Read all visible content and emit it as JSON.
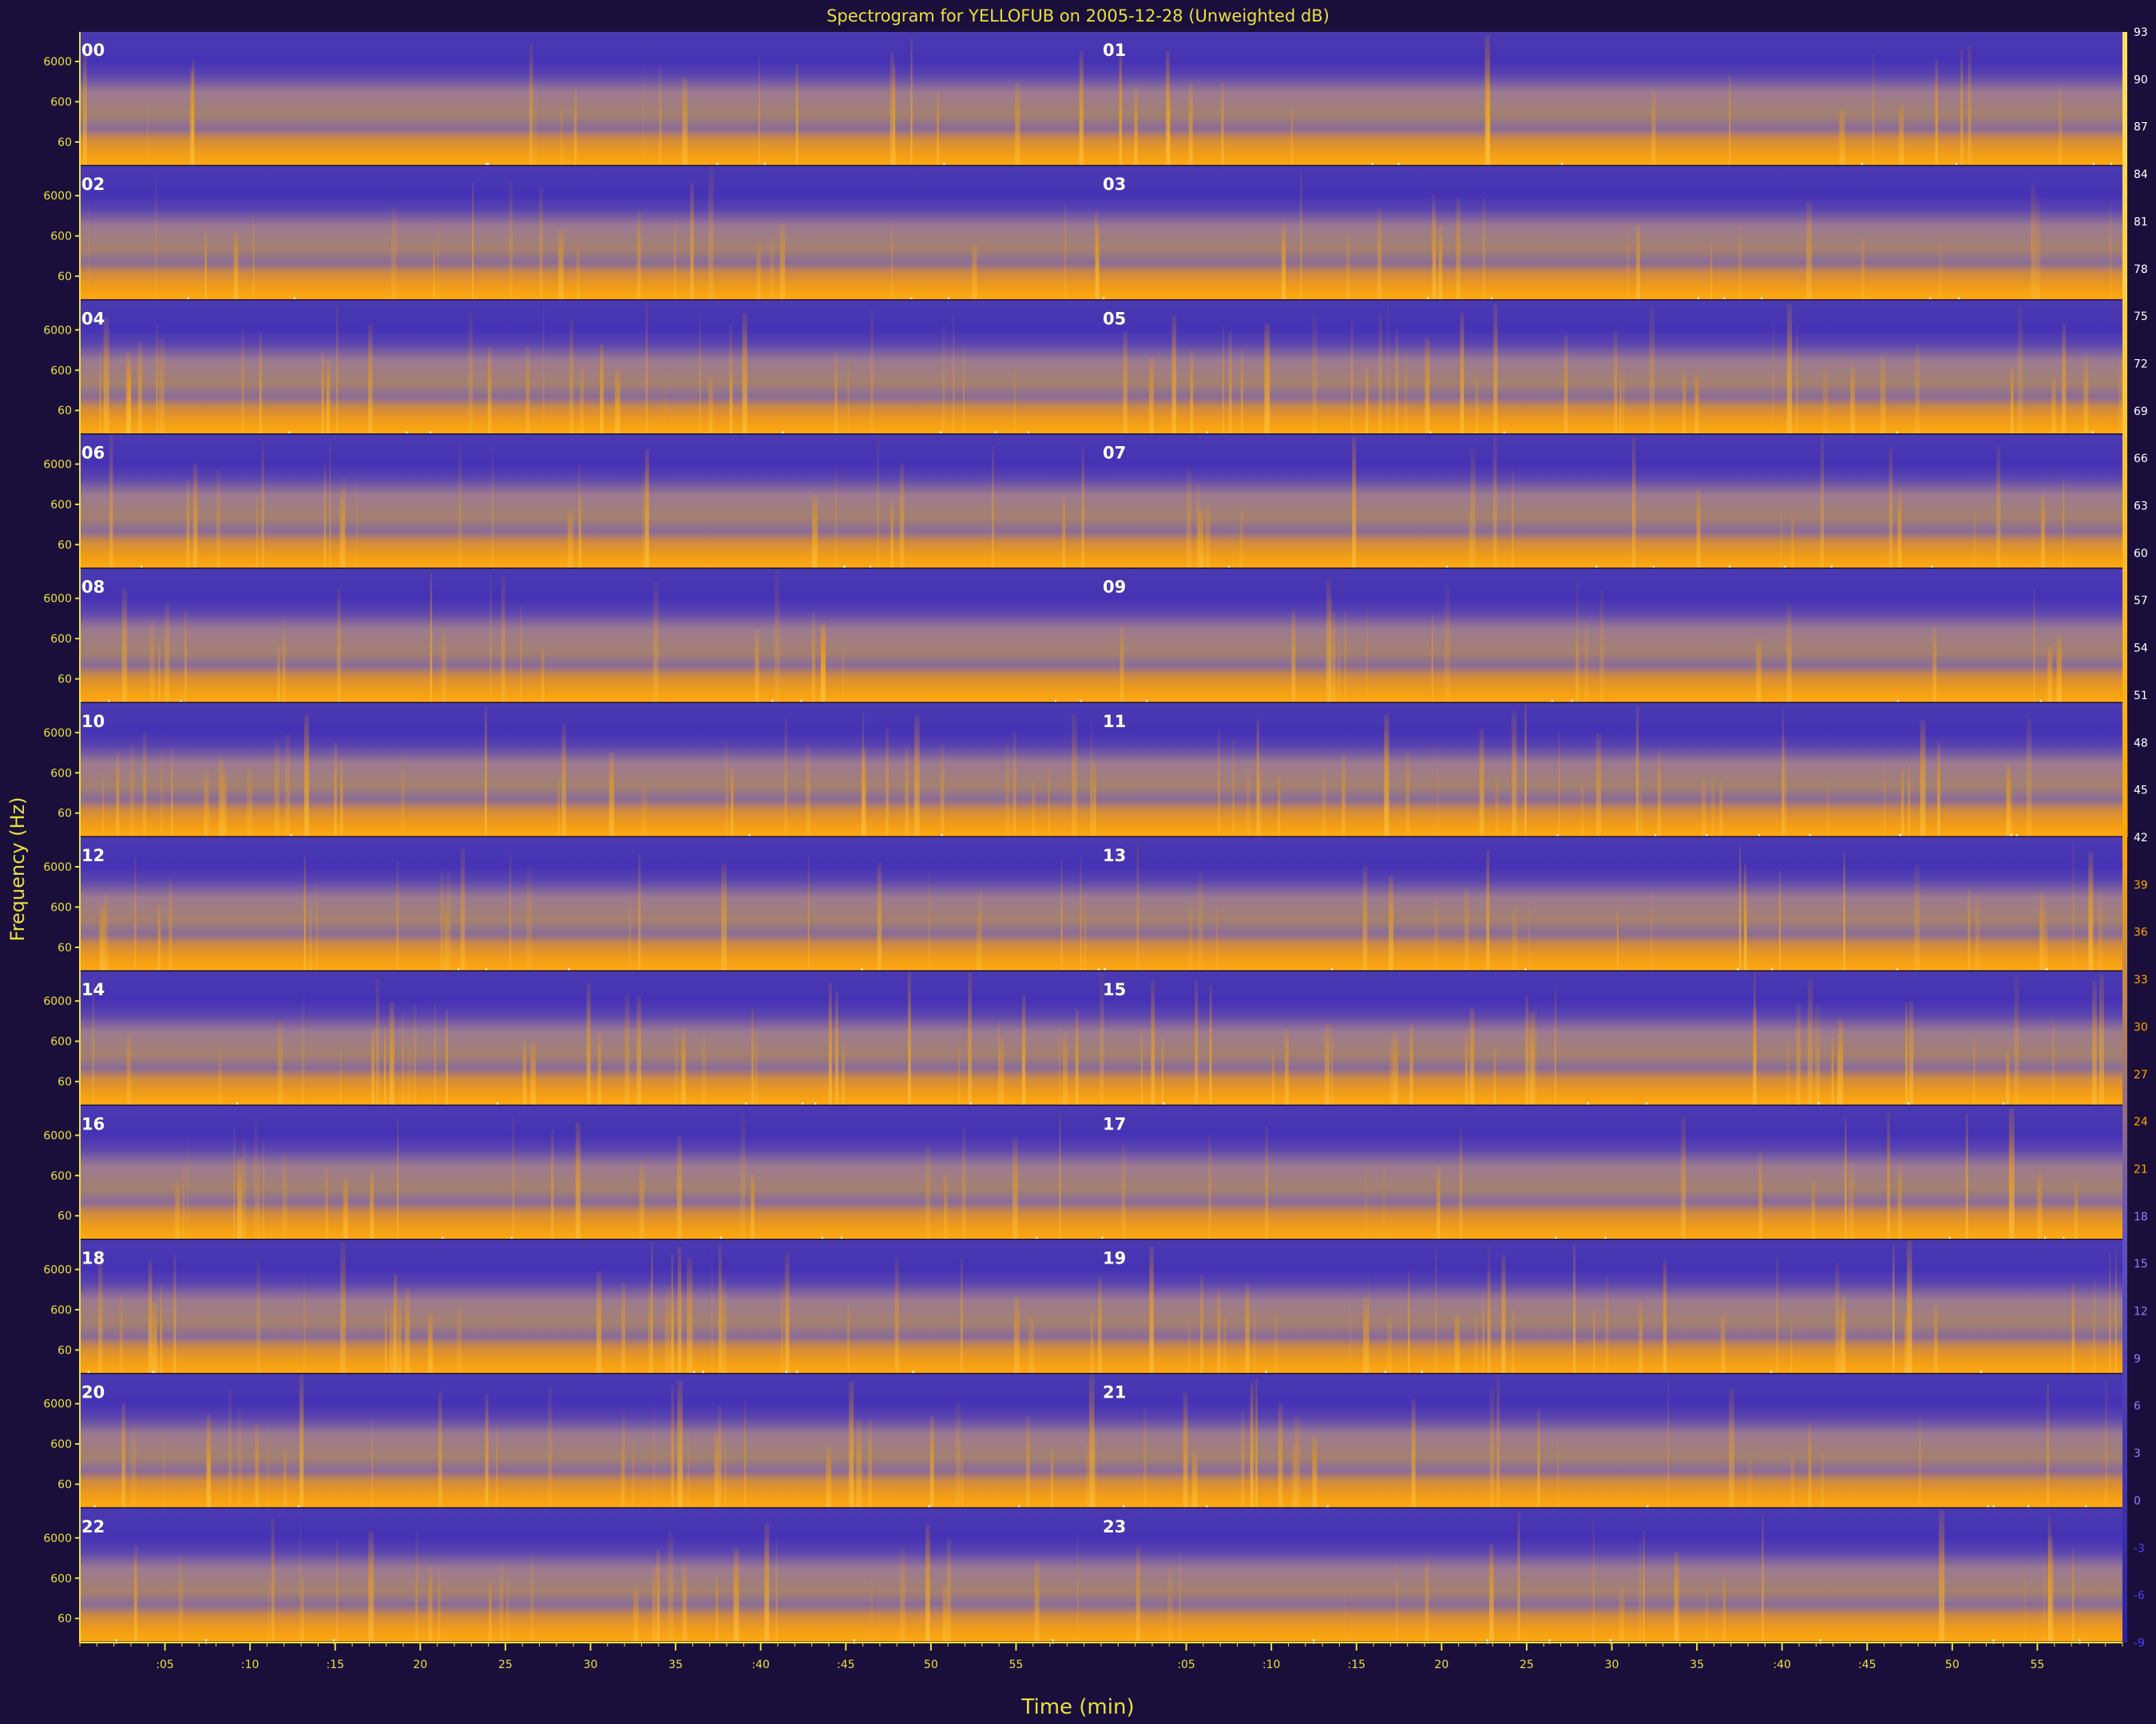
{
  "chart_data": {
    "type": "heatmap",
    "title": "Spectrogram for YELLOFUB on 2005-12-28 (Unweighted dB)",
    "xlabel": "Time (min)",
    "ylabel": "Frequency (Hz)",
    "hour_labels": [
      "00",
      "01",
      "02",
      "03",
      "04",
      "05",
      "06",
      "07",
      "08",
      "09",
      "10",
      "11",
      "12",
      "13",
      "14",
      "15",
      "16",
      "17",
      "18",
      "19",
      "20",
      "21",
      "22",
      "23"
    ],
    "x_tick_labels": [
      ":05",
      ":10",
      ":15",
      "20",
      "25",
      "30",
      "35",
      ":40",
      ":45",
      "50",
      "55"
    ],
    "y_tick_labels": [
      "6000",
      "600",
      "60"
    ],
    "colorbar_ticks": [
      "93",
      "90",
      "87",
      "84",
      "81",
      "78",
      "75",
      "72",
      "69",
      "66",
      "63",
      "60",
      "57",
      "54",
      "51",
      "48",
      "45",
      "42",
      "39",
      "36",
      "33",
      "30",
      "27",
      "24",
      "21",
      "18",
      "15",
      "12",
      "9",
      "6",
      "3",
      "0",
      "-3",
      "-6",
      "-9"
    ],
    "colorbar_range": [
      -9,
      93
    ],
    "colormap": {
      "low": "#3a2a9e",
      "mid": "#b08a70",
      "high": "#ffa600",
      "peak": "#ffe8a0"
    },
    "rows": 12,
    "hours_per_row": 2
  }
}
